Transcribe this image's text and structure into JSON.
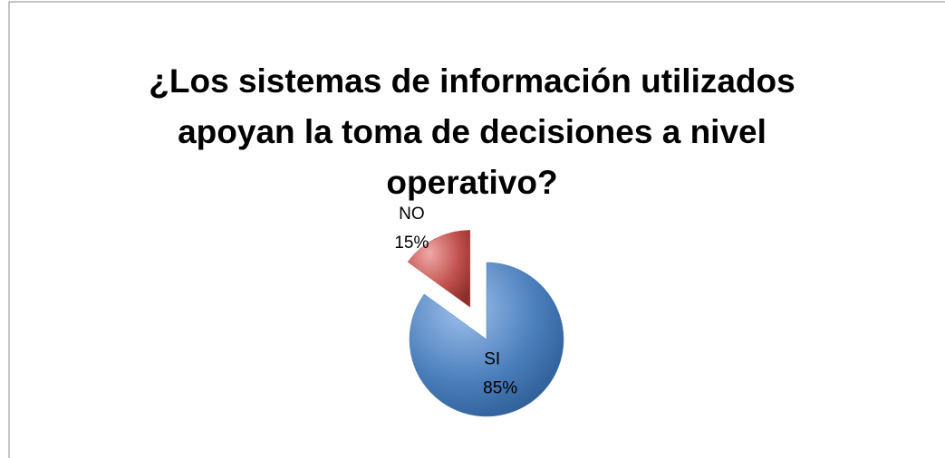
{
  "chart_data": {
    "type": "pie",
    "title": "¿Los sistemas de información utilizados apoyan la toma de decisiones a nivel operativo?",
    "categories": [
      "SI",
      "NO"
    ],
    "values": [
      85,
      15
    ],
    "value_labels": [
      "85%",
      "15%"
    ],
    "colors": [
      "#4a7ebb",
      "#c0504d"
    ]
  }
}
